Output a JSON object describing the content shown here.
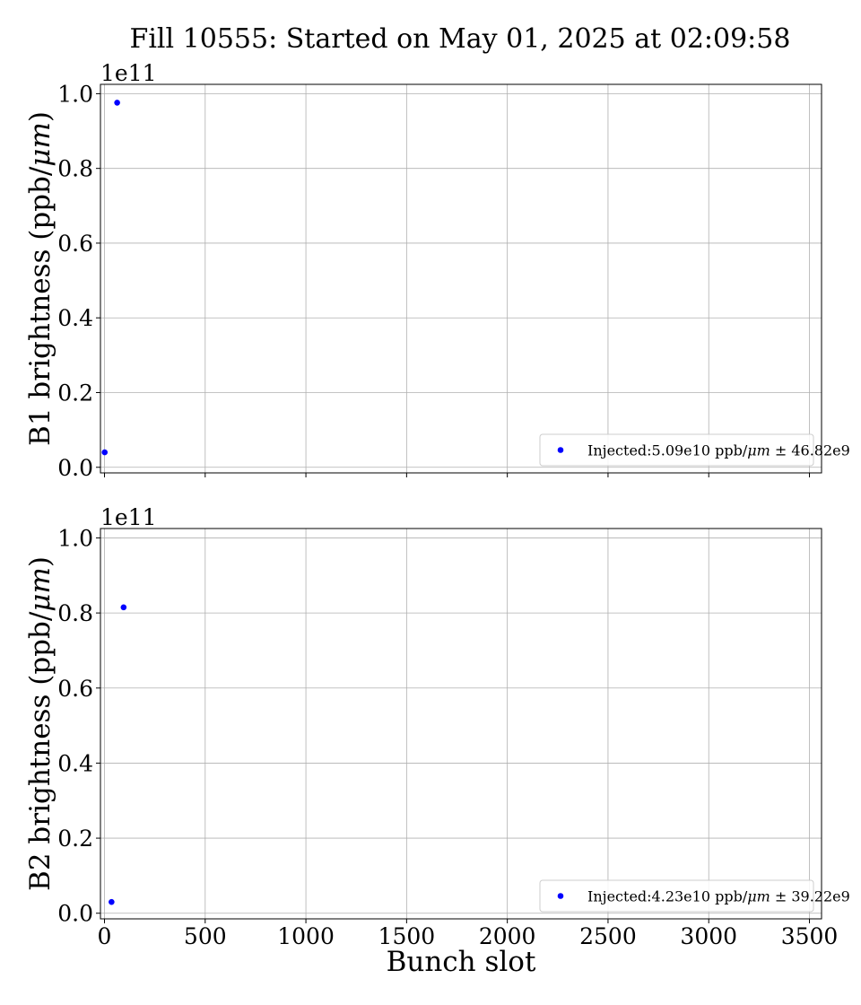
{
  "figure_title": "Fill 10555: Started on May 01, 2025 at 02:09:58",
  "chart_data": [
    {
      "type": "scatter",
      "ylabel": "B1 brightness (ppb/μm)",
      "xlabel": "",
      "offset_label": "1e11",
      "xlim": [
        -20,
        3560
      ],
      "ylim": [
        -0.015,
        1.025
      ],
      "y_scale_multiplier": 100000000000.0,
      "xticks": [
        0,
        500,
        1000,
        1500,
        2000,
        2500,
        3000,
        3500
      ],
      "xtick_labels_visible": false,
      "yticks": [
        0.0,
        0.2,
        0.4,
        0.6,
        0.8,
        1.0
      ],
      "ytick_labels": [
        "0.0",
        "0.2",
        "0.4",
        "0.6",
        "0.8",
        "1.0"
      ],
      "grid": true,
      "legend_position": "lower-right",
      "series": [
        {
          "name": "Injected:5.09e10 ppb/μm ± 46.82e9",
          "color": "#0000ff",
          "marker": "circle",
          "x": [
            1,
            63
          ],
          "y": [
            0.04,
            0.976
          ]
        }
      ]
    },
    {
      "type": "scatter",
      "ylabel": "B2 brightness (ppb/μm)",
      "xlabel": "Bunch slot",
      "offset_label": "1e11",
      "xlim": [
        -20,
        3560
      ],
      "ylim": [
        -0.015,
        1.025
      ],
      "y_scale_multiplier": 100000000000.0,
      "xticks": [
        0,
        500,
        1000,
        1500,
        2000,
        2500,
        3000,
        3500
      ],
      "xtick_labels": [
        "0",
        "500",
        "1000",
        "1500",
        "2000",
        "2500",
        "3000",
        "3500"
      ],
      "xtick_labels_visible": true,
      "yticks": [
        0.0,
        0.2,
        0.4,
        0.6,
        0.8,
        1.0
      ],
      "ytick_labels": [
        "0.0",
        "0.2",
        "0.4",
        "0.6",
        "0.8",
        "1.0"
      ],
      "grid": true,
      "legend_position": "lower-right",
      "series": [
        {
          "name": "Injected:4.23e10 ppb/μm ± 39.22e9",
          "color": "#0000ff",
          "marker": "circle",
          "x": [
            35,
            95
          ],
          "y": [
            0.03,
            0.815
          ]
        }
      ]
    }
  ]
}
